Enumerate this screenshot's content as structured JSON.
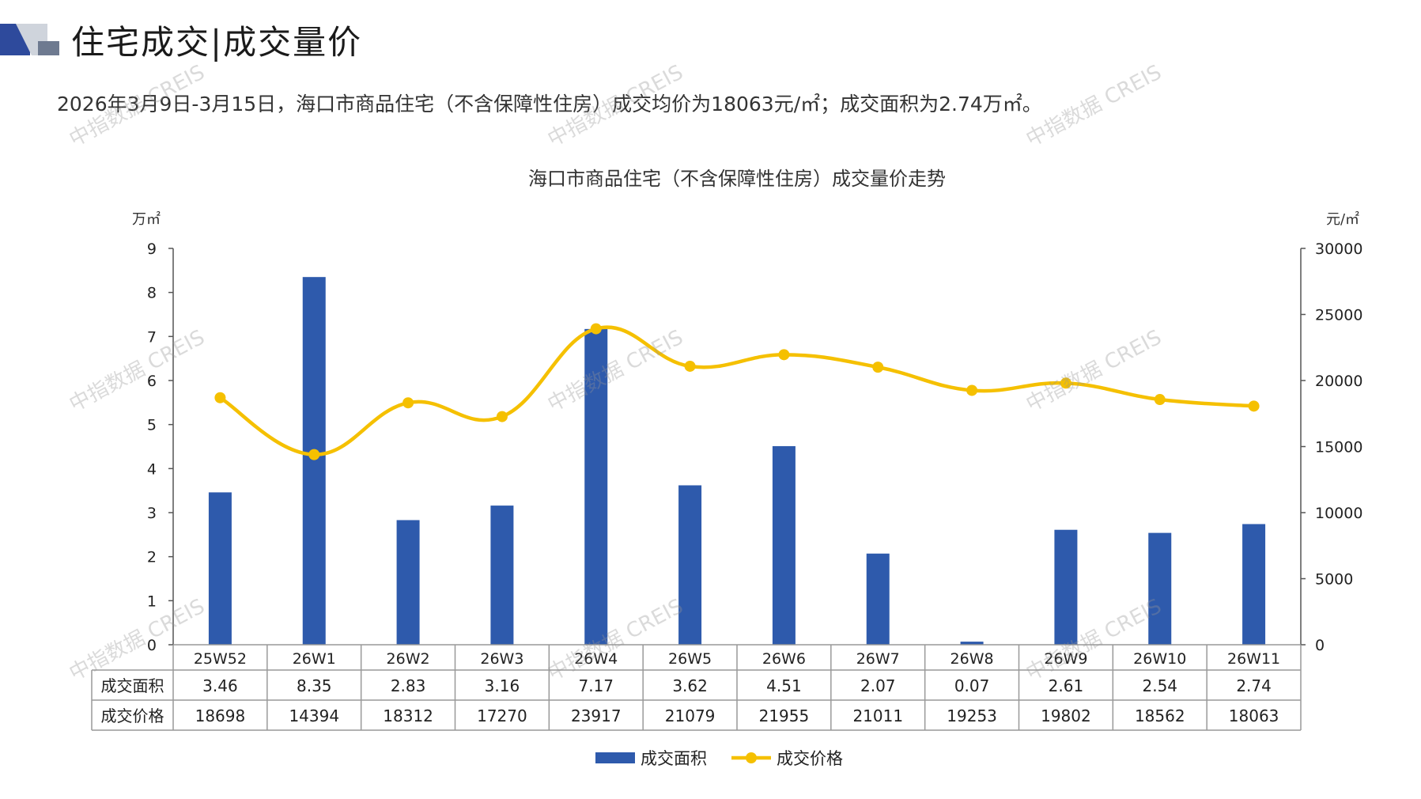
{
  "header": {
    "title": "住宅成交|成交量价",
    "subtitle": "2026年3月9日-3月15日，海口市商品住宅（不含保障性住房）成交均价为18063元/㎡；成交面积为2.74万㎡。"
  },
  "watermark": "中指数据 CREIS",
  "colors": {
    "bar": "#2e5aac",
    "line": "#f5c000",
    "logo_dark": "#2e4a9c",
    "logo_light": "#cfd4dc"
  },
  "chart_data": {
    "type": "bar",
    "title": "海口市商品住宅（不含保障性住房）成交量价走势",
    "y_left_unit": "万㎡",
    "y_right_unit": "元/㎡",
    "ylim_left": [
      0,
      9
    ],
    "ylim_right": [
      0,
      30000
    ],
    "yticks_left": [
      "0",
      "1",
      "2",
      "3",
      "4",
      "5",
      "6",
      "7",
      "8",
      "9"
    ],
    "yticks_right": [
      "0",
      "5000",
      "10000",
      "15000",
      "20000",
      "25000",
      "30000"
    ],
    "categories": [
      "25W52",
      "26W1",
      "26W2",
      "26W3",
      "26W4",
      "26W5",
      "26W6",
      "26W7",
      "26W8",
      "26W9",
      "26W10",
      "26W11"
    ],
    "series": [
      {
        "name": "成交面积",
        "type": "bar",
        "axis": "left",
        "values": [
          3.46,
          8.35,
          2.83,
          3.16,
          7.17,
          3.62,
          4.51,
          2.07,
          0.07,
          2.61,
          2.54,
          2.74
        ],
        "labels": [
          "3.46",
          "8.35",
          "2.83",
          "3.16",
          "7.17",
          "3.62",
          "4.51",
          "2.07",
          "0.07",
          "2.61",
          "2.54",
          "2.74"
        ]
      },
      {
        "name": "成交价格",
        "type": "line",
        "axis": "right",
        "values": [
          18698,
          14394,
          18312,
          17270,
          23917,
          21079,
          21955,
          21011,
          19253,
          19802,
          18562,
          18063
        ],
        "labels": [
          "18698",
          "14394",
          "18312",
          "17270",
          "23917",
          "21079",
          "21955",
          "21011",
          "19253",
          "19802",
          "18562",
          "18063"
        ]
      }
    ],
    "legend_position": "bottom",
    "data_table": true,
    "grid": false
  }
}
